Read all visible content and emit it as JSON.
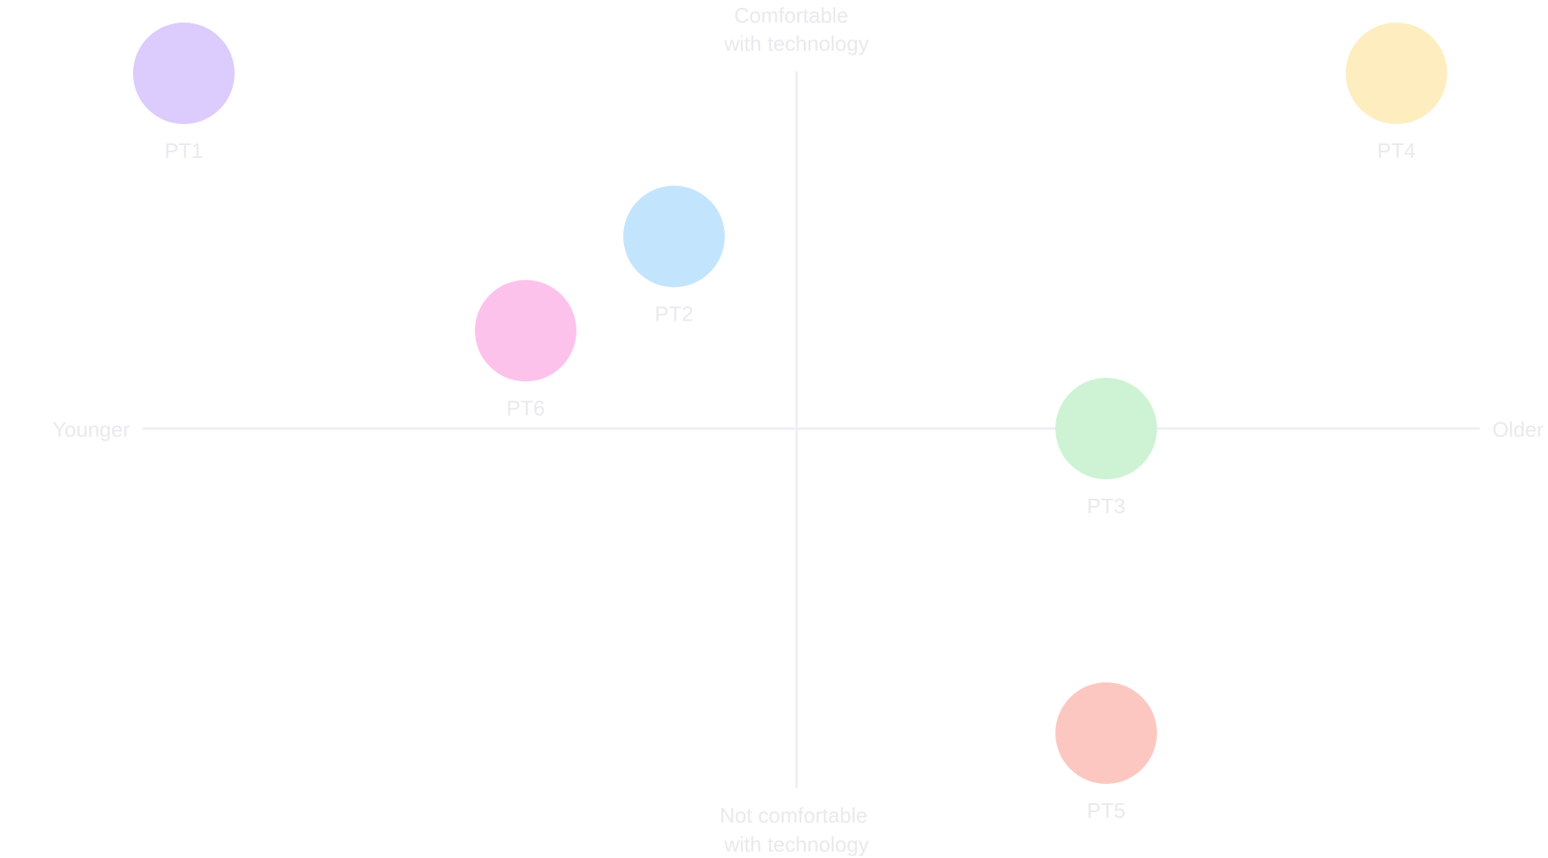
{
  "axes": {
    "top_label": [
      "Comfortable",
      "with technology"
    ],
    "bottom_label": [
      "Not comfortable",
      "with technology"
    ],
    "left_label": "Younger",
    "right_label": "Older"
  },
  "points": [
    {
      "label": "PT1",
      "age": -0.95,
      "tech_comfort": 0.98,
      "color": "#dccbfd"
    },
    {
      "label": "PT2",
      "age": -0.19,
      "tech_comfort": 0.53,
      "color": "#c3e4fd"
    },
    {
      "label": "PT6",
      "age": -0.42,
      "tech_comfort": 0.27,
      "color": "#fdc2ec"
    },
    {
      "label": "PT3",
      "age": 0.48,
      "tech_comfort": 0.0,
      "color": "#cdf3d4"
    },
    {
      "label": "PT4",
      "age": 0.93,
      "tech_comfort": 0.98,
      "color": "#feedbf"
    },
    {
      "label": "PT5",
      "age": 0.48,
      "tech_comfort": -0.84,
      "color": "#fdc7c1"
    }
  ]
}
